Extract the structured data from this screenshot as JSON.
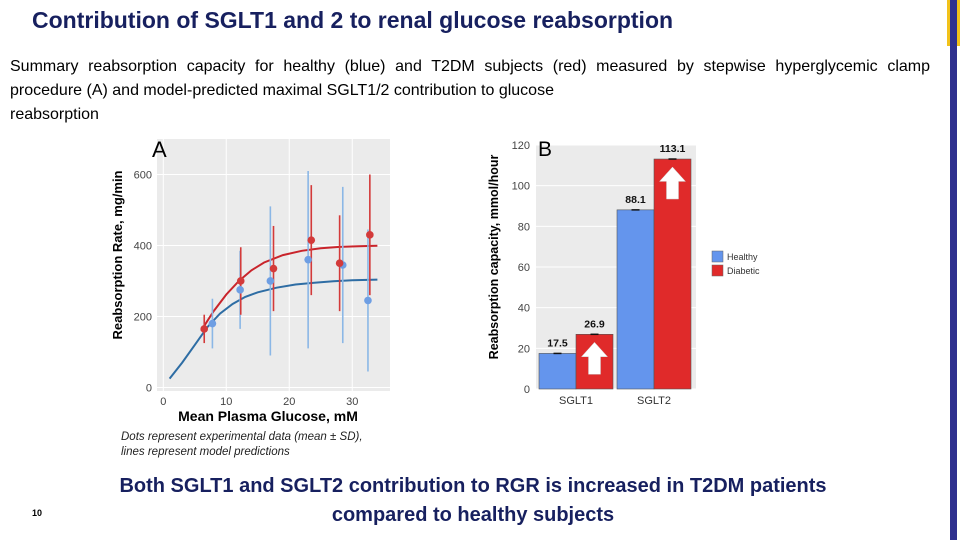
{
  "slide": {
    "title": "Contribution of SGLT1 and 2 to renal glucose reabsorption",
    "summary_main": "Summary reabsorption capacity for healthy (blue) and T2DM subjects (red) measured by stepwise hyperglycemic clamp procedure (A) and model-predicted maximal SGLT1/2 contribution to glucose",
    "summary_last": "reabsorption",
    "caption_line1": "Dots represent experimental data (mean ± SD),",
    "caption_line2": "lines represent model predictions",
    "conclusion_line1": "Both SGLT1 and SGLT2 contribution to RGR is increased in T2DM patients",
    "conclusion_line2": "compared to healthy subjects",
    "slide_number": "10"
  },
  "colors": {
    "title": "#17205f",
    "healthy_line": "#2e6da4",
    "healthy_dot": "#6e9ee3",
    "healthy_err": "#8bb7e6",
    "diabetic_line": "#c9242b",
    "diabetic_dot": "#d33a3a",
    "bar_healthy": "#6495ed",
    "bar_diabetic": "#e02a2a",
    "arrow": "#ffffff",
    "stripe": "#2f318f",
    "corner": "#f2c21a"
  },
  "chart_data": [
    {
      "id": "A",
      "type": "scatter",
      "panel_label": "A",
      "xlabel": "Mean Plasma Glucose, mM",
      "ylabel": "Reabsorption Rate, mg/min",
      "xlim": [
        -1,
        36
      ],
      "ylim": [
        -10,
        700
      ],
      "xticks": [
        0,
        10,
        20,
        30
      ],
      "yticks": [
        0,
        200,
        400,
        600
      ],
      "grid": true,
      "series": [
        {
          "name": "Healthy",
          "points": [
            {
              "x": 7.8,
              "y": 180,
              "err": 70
            },
            {
              "x": 12.2,
              "y": 275,
              "err": 110
            },
            {
              "x": 17.0,
              "y": 300,
              "err": 210
            },
            {
              "x": 23.0,
              "y": 360,
              "err": 250
            },
            {
              "x": 28.5,
              "y": 345,
              "err": 220
            },
            {
              "x": 32.5,
              "y": 245,
              "err": 200
            }
          ],
          "curve": [
            [
              1.0,
              25
            ],
            [
              3,
              70
            ],
            [
              5,
              120
            ],
            [
              7,
              170
            ],
            [
              9,
              208
            ],
            [
              11,
              235
            ],
            [
              13,
              255
            ],
            [
              15,
              268
            ],
            [
              18,
              281
            ],
            [
              21,
              290
            ],
            [
              24,
              295
            ],
            [
              27,
              299
            ],
            [
              30,
              302
            ],
            [
              34,
              304
            ]
          ]
        },
        {
          "name": "Diabetic",
          "points": [
            {
              "x": 6.5,
              "y": 165,
              "err": 40
            },
            {
              "x": 12.3,
              "y": 300,
              "err": 95
            },
            {
              "x": 17.5,
              "y": 335,
              "err": 120
            },
            {
              "x": 23.5,
              "y": 415,
              "err": 155
            },
            {
              "x": 28.0,
              "y": 350,
              "err": 135
            },
            {
              "x": 32.8,
              "y": 430,
              "err": 170
            }
          ],
          "curve": [
            [
              6,
              160
            ],
            [
              8,
              215
            ],
            [
              10,
              262
            ],
            [
              12,
              300
            ],
            [
              14,
              330
            ],
            [
              16,
              352
            ],
            [
              19,
              373
            ],
            [
              22,
              385
            ],
            [
              25,
              392
            ],
            [
              28,
              396
            ],
            [
              31,
              398
            ],
            [
              34,
              399
            ]
          ]
        }
      ]
    },
    {
      "id": "B",
      "type": "bar",
      "panel_label": "B",
      "ylabel": "Reabsorption capacity, mmol/hour",
      "categories": [
        "SGLT1",
        "SGLT2"
      ],
      "ylim": [
        0,
        120
      ],
      "yticks": [
        0,
        20,
        40,
        60,
        80,
        100,
        120
      ],
      "legend_position": "right",
      "series": [
        {
          "name": "Healthy",
          "values": [
            17.5,
            88.1
          ],
          "labels": [
            "17.5",
            "88.1"
          ]
        },
        {
          "name": "Diabetic",
          "values": [
            26.9,
            113.1
          ],
          "labels": [
            "26.9",
            "113.1"
          ]
        }
      ]
    }
  ]
}
